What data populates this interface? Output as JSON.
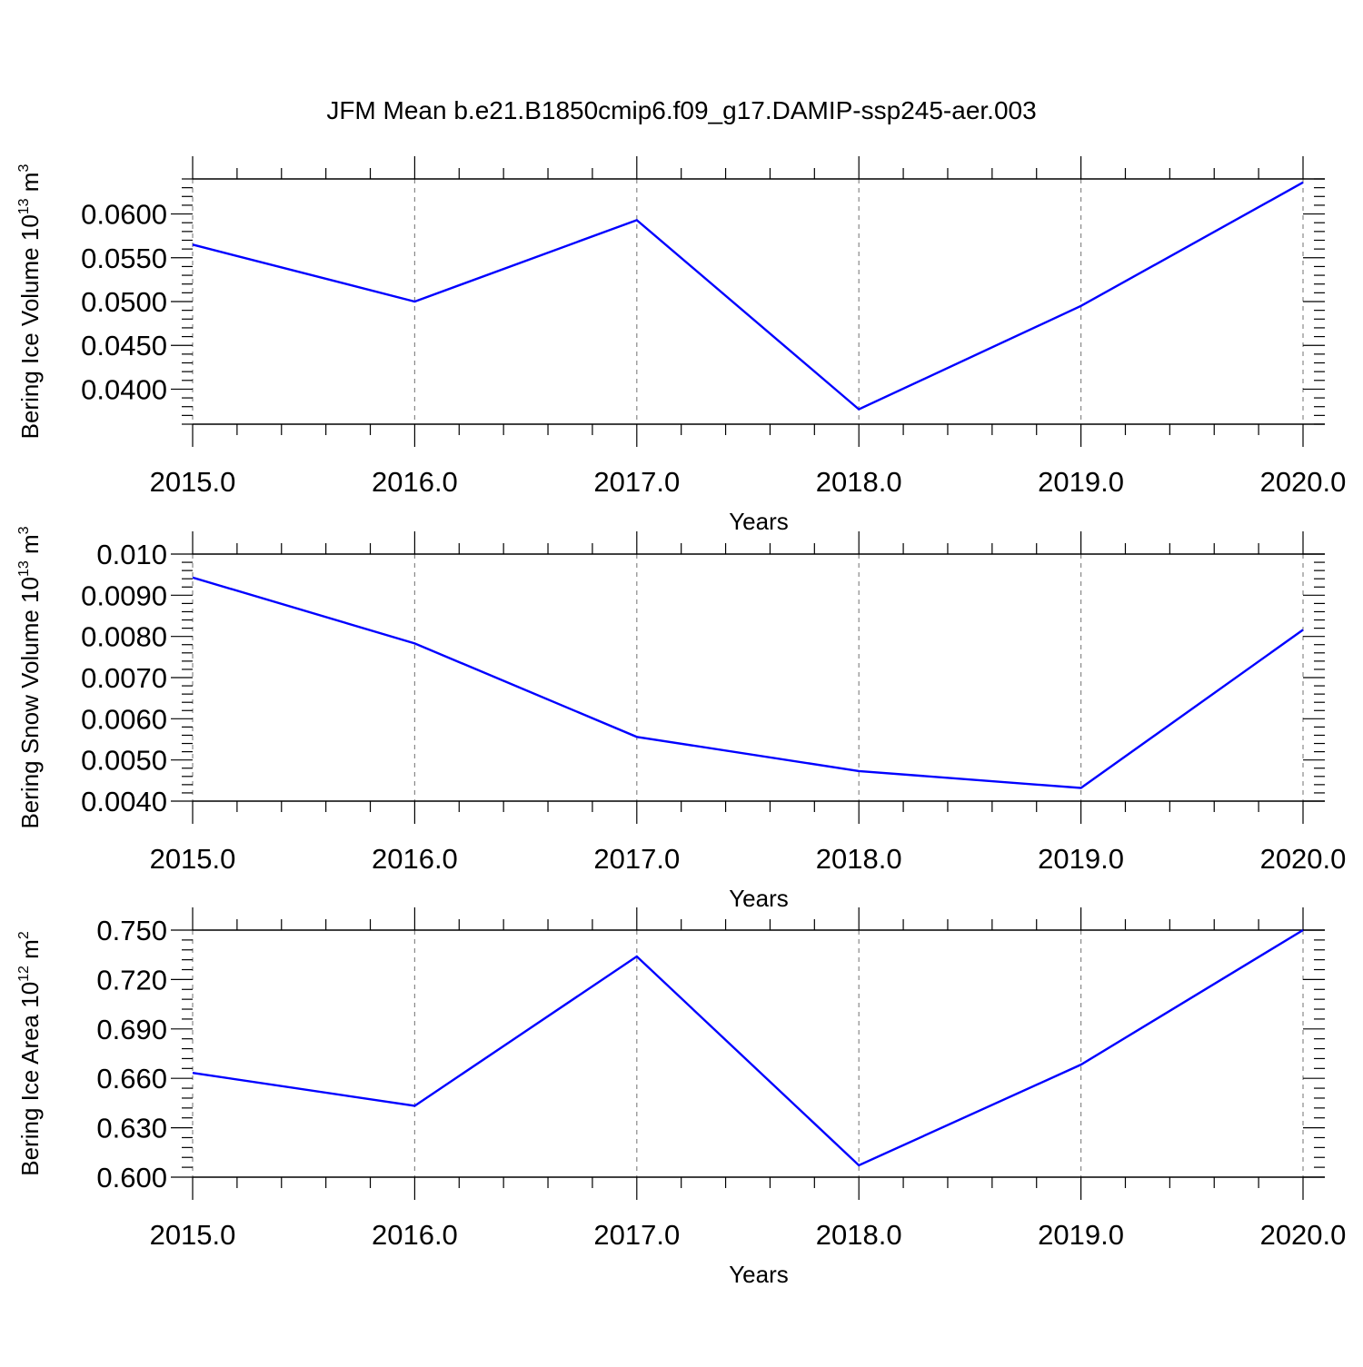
{
  "title": "JFM Mean b.e21.B1850cmip6.f09_g17.DAMIP-ssp245-aer.003",
  "colors": {
    "line": "#0000ff",
    "axis": "#000000",
    "grid": "#888888"
  },
  "chart_data": [
    {
      "type": "line",
      "ylabel": "Bering Ice Volume 10",
      "ylabel_exp": "13",
      "ylabel_unit": " m",
      "ylabel_unit_exp": "3",
      "xlabel": "Years",
      "x": [
        2015,
        2016,
        2017,
        2018,
        2019,
        2020
      ],
      "xticks": [
        "2015.0",
        "2016.0",
        "2017.0",
        "2018.0",
        "2019.0",
        "2020.0"
      ],
      "ylim": [
        0.036,
        0.064
      ],
      "yticks": [
        0.04,
        0.045,
        0.05,
        0.055,
        0.06
      ],
      "yticklabels": [
        "0.0400",
        "0.0450",
        "0.0500",
        "0.0550",
        "0.0600"
      ],
      "values": [
        0.0565,
        0.05,
        0.0593,
        0.0377,
        0.0495,
        0.0636
      ],
      "xgrid": true
    },
    {
      "type": "line",
      "ylabel": "Bering Snow Volume 10",
      "ylabel_exp": "13",
      "ylabel_unit": " m",
      "ylabel_unit_exp": "3",
      "xlabel": "Years",
      "x": [
        2015,
        2016,
        2017,
        2018,
        2019,
        2020
      ],
      "xticks": [
        "2015.0",
        "2016.0",
        "2017.0",
        "2018.0",
        "2019.0",
        "2020.0"
      ],
      "ylim": [
        0.004,
        0.01
      ],
      "yticks": [
        0.004,
        0.005,
        0.006,
        0.007,
        0.008,
        0.009,
        0.01
      ],
      "yticklabels": [
        "0.0040",
        "0.0050",
        "0.0060",
        "0.0070",
        "0.0080",
        "0.0090",
        "0.010"
      ],
      "values": [
        0.00943,
        0.00783,
        0.00556,
        0.00473,
        0.00432,
        0.00816
      ],
      "xgrid": true
    },
    {
      "type": "line",
      "ylabel": "Bering Ice Area 10",
      "ylabel_exp": "12",
      "ylabel_unit": " m",
      "ylabel_unit_exp": "2",
      "xlabel": "Years",
      "x": [
        2015,
        2016,
        2017,
        2018,
        2019,
        2020
      ],
      "xticks": [
        "2015.0",
        "2016.0",
        "2017.0",
        "2018.0",
        "2019.0",
        "2020.0"
      ],
      "ylim": [
        0.6,
        0.75
      ],
      "yticks": [
        0.6,
        0.63,
        0.66,
        0.69,
        0.72,
        0.75
      ],
      "yticklabels": [
        "0.600",
        "0.630",
        "0.660",
        "0.690",
        "0.720",
        "0.750"
      ],
      "values": [
        0.6633,
        0.6433,
        0.734,
        0.6072,
        0.6683,
        0.75
      ],
      "xgrid": true
    }
  ]
}
